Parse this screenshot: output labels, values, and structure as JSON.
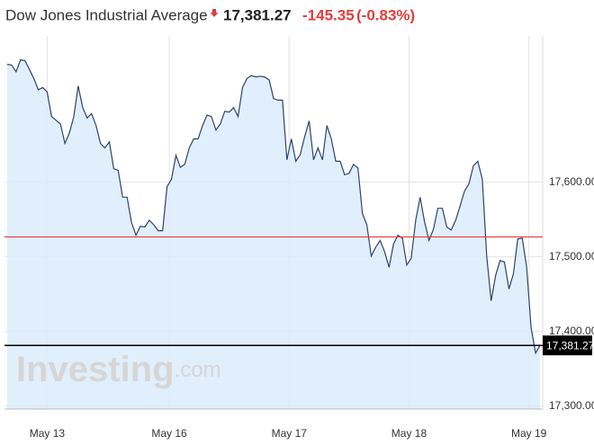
{
  "chart_data": {
    "type": "line",
    "title": "Dow Jones Industrial Average",
    "price": "17,381.27",
    "change": -145.35,
    "change_percent": "(-0.83%)",
    "watermark": [
      "Investing",
      ".com"
    ],
    "series": [
      {
        "name": "Dow Jones Industrial Average",
        "color": "#2f4468",
        "fill": "#dcebfb",
        "values": [
          17758,
          17757,
          17748,
          17764,
          17763,
          17751,
          17739,
          17724,
          17727,
          17721,
          17688,
          17683,
          17678,
          17652,
          17666,
          17688,
          17729,
          17700,
          17686,
          17692,
          17676,
          17652,
          17646,
          17654,
          17618,
          17616,
          17580,
          17580,
          17546,
          17529,
          17541,
          17540,
          17549,
          17543,
          17535,
          17535,
          17594,
          17604,
          17636,
          17620,
          17624,
          17646,
          17658,
          17658,
          17676,
          17690,
          17688,
          17670,
          17678,
          17695,
          17694,
          17700,
          17688,
          17727,
          17739,
          17743,
          17741,
          17742,
          17741,
          17737,
          17712,
          17710,
          17710,
          17630,
          17658,
          17628,
          17637,
          17661,
          17682,
          17630,
          17646,
          17630,
          17676,
          17658,
          17628,
          17628,
          17610,
          17612,
          17624,
          17619,
          17558,
          17543,
          17501,
          17513,
          17522,
          17507,
          17486,
          17517,
          17529,
          17525,
          17489,
          17498,
          17549,
          17580,
          17547,
          17522,
          17537,
          17565,
          17565,
          17540,
          17536,
          17549,
          17568,
          17588,
          17598,
          17622,
          17628,
          17604,
          17501,
          17441,
          17475,
          17495,
          17493,
          17457,
          17477,
          17524,
          17525,
          17486,
          17405,
          17371,
          17381.27
        ]
      }
    ],
    "xlim": [
      0,
      120
    ],
    "xticks": [
      {
        "value": 9,
        "label": "May 13"
      },
      {
        "value": 36.5,
        "label": "May 16"
      },
      {
        "value": 63.5,
        "label": "May 17"
      },
      {
        "value": 90.5,
        "label": "May 18"
      },
      {
        "value": 117.5,
        "label": "May 19"
      }
    ],
    "ylim": [
      17296,
      17796
    ],
    "yticks": [
      {
        "value": 17300,
        "label": "17,300.00"
      },
      {
        "value": 17400,
        "label": "17,400.00"
      },
      {
        "value": 17500,
        "label": "17,500.00"
      },
      {
        "value": 17600,
        "label": "17,600.00"
      }
    ],
    "grid": true,
    "reference_line": {
      "value": 17526.62,
      "color": "#e23c3c"
    },
    "last_value": {
      "value": 17381.27,
      "label": "17,381.27",
      "color": "#000000"
    }
  }
}
